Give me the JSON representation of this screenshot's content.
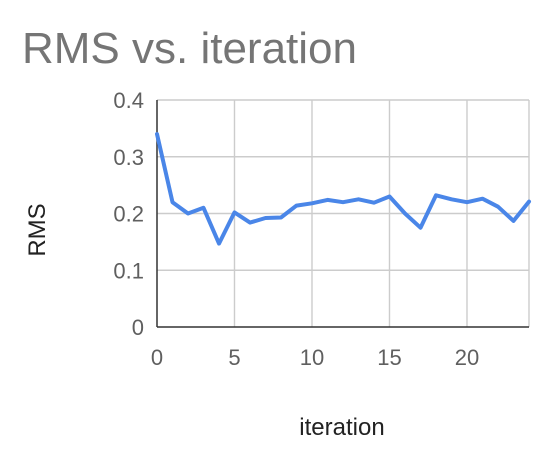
{
  "chart_data": {
    "type": "line",
    "title": "RMS vs. iteration",
    "xlabel": "iteration",
    "ylabel": "RMS",
    "xlim": [
      0,
      24
    ],
    "ylim": [
      0,
      0.4
    ],
    "xticks": [
      0,
      5,
      10,
      15,
      20
    ],
    "yticks": [
      0,
      0.1,
      0.2,
      0.3,
      0.4
    ],
    "xtick_labels": [
      "0",
      "5",
      "10",
      "15",
      "20"
    ],
    "ytick_labels": [
      "0",
      "0.1",
      "0.2",
      "0.3",
      "0.4"
    ],
    "grid": true,
    "legend": "none",
    "series": [
      {
        "color": "#4a86e8",
        "x": [
          0,
          1,
          2,
          3,
          4,
          5,
          6,
          7,
          8,
          9,
          10,
          11,
          12,
          13,
          14,
          15,
          16,
          17,
          18,
          19,
          20,
          21,
          22,
          23,
          24
        ],
        "y": [
          0.34,
          0.22,
          0.2,
          0.21,
          0.147,
          0.202,
          0.184,
          0.192,
          0.193,
          0.214,
          0.218,
          0.224,
          0.22,
          0.225,
          0.219,
          0.23,
          0.2,
          0.175,
          0.232,
          0.225,
          0.22,
          0.226,
          0.212,
          0.187,
          0.221
        ]
      }
    ]
  }
}
